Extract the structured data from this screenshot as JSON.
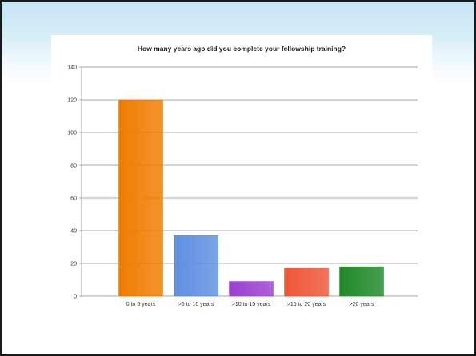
{
  "chart_data": {
    "type": "bar",
    "title": "How many years ago did you complete your fellowship training?",
    "xlabel": "",
    "ylabel": "",
    "categories": [
      "0 to 5 years",
      ">5 to 10 years",
      ">10 to 15 years",
      ">15 to 20 years",
      ">20 years"
    ],
    "values": [
      120,
      37,
      9,
      17,
      18
    ],
    "colors": [
      "#f07c00",
      "#5f8fe0",
      "#9a3fcf",
      "#ee5636",
      "#1f8a2a"
    ],
    "ylim": [
      0,
      140
    ],
    "yticks": [
      0,
      20,
      40,
      60,
      80,
      100,
      120,
      140
    ],
    "grid": true,
    "legend": "none"
  }
}
